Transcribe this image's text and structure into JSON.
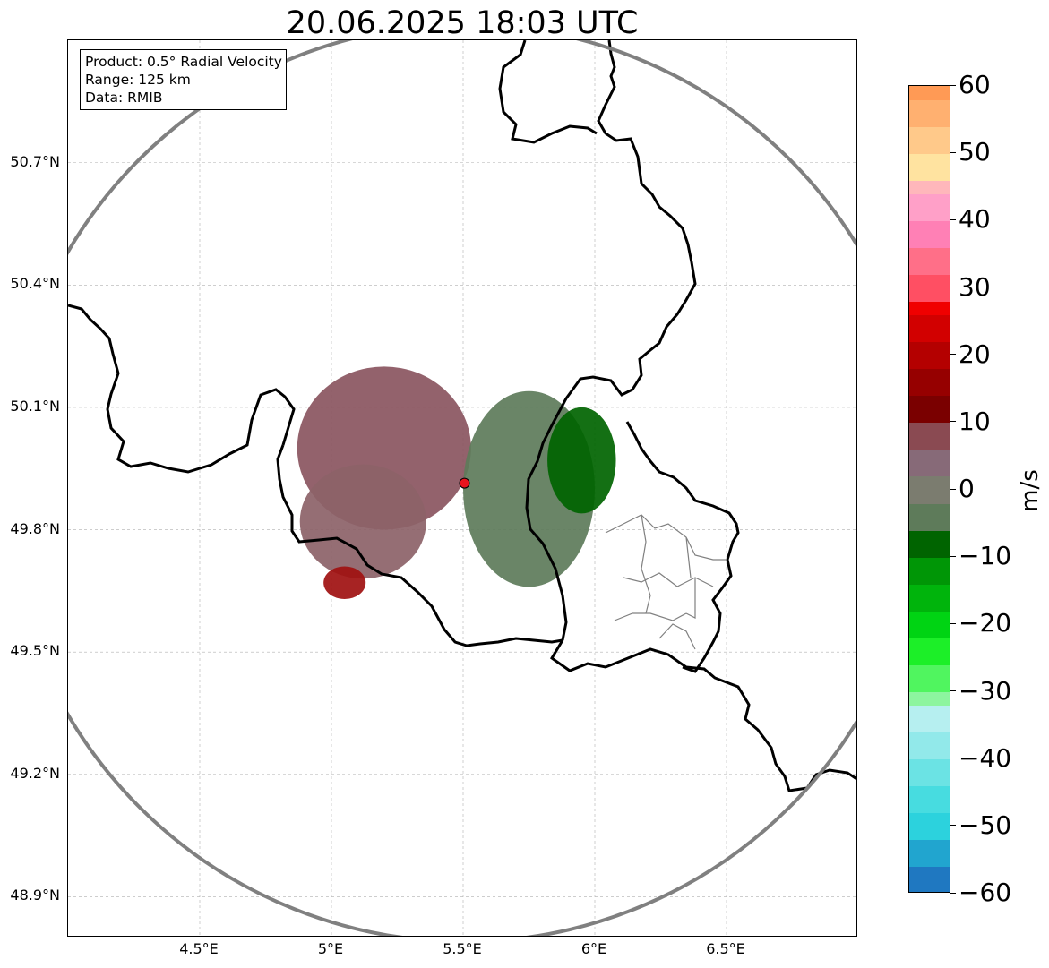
{
  "title": "20.06.2025 18:03 UTC",
  "info_box": {
    "product": "Product: 0.5° Radial Velocity",
    "range": "Range: 125 km",
    "source": "Data: RMIB"
  },
  "axes": {
    "lon_range": [
      4.0,
      7.0
    ],
    "lat_range": [
      48.8,
      51.0
    ],
    "lon_ticks": [
      {
        "value": 4.5,
        "label": "4.5°E"
      },
      {
        "value": 5.0,
        "label": "5°E"
      },
      {
        "value": 5.5,
        "label": "5.5°E"
      },
      {
        "value": 6.0,
        "label": "6°E"
      },
      {
        "value": 6.5,
        "label": "6.5°E"
      }
    ],
    "lat_ticks": [
      {
        "value": 50.7,
        "label": "50.7°N"
      },
      {
        "value": 50.4,
        "label": "50.4°N"
      },
      {
        "value": 50.1,
        "label": "50.1°N"
      },
      {
        "value": 49.8,
        "label": "49.8°N"
      },
      {
        "value": 49.5,
        "label": "49.5°N"
      },
      {
        "value": 49.2,
        "label": "49.2°N"
      },
      {
        "value": 48.9,
        "label": "48.9°N"
      }
    ],
    "grid": true
  },
  "radar": {
    "site": {
      "lon": 5.505,
      "lat": 49.914
    },
    "range_km": 125,
    "site_color": "#e8141e",
    "ring_color": "#808080"
  },
  "echoes": [
    {
      "lon": 5.2,
      "lat": 50.0,
      "rlon": 0.33,
      "rlat": 0.2,
      "color": "#8a5560"
    },
    {
      "lon": 5.12,
      "lat": 49.82,
      "rlon": 0.24,
      "rlat": 0.14,
      "color": "#8c6268"
    },
    {
      "lon": 5.75,
      "lat": 49.9,
      "rlon": 0.25,
      "rlat": 0.24,
      "color": "#5d7b5a"
    },
    {
      "lon": 5.95,
      "lat": 49.97,
      "rlon": 0.13,
      "rlat": 0.13,
      "color": "#006400"
    },
    {
      "lon": 5.05,
      "lat": 49.67,
      "rlon": 0.08,
      "rlat": 0.04,
      "color": "#a01010"
    }
  ],
  "colorbar": {
    "label": "m/s",
    "min": -60,
    "max": 60,
    "ticks": [
      60,
      50,
      40,
      30,
      20,
      10,
      0,
      -10,
      -20,
      -30,
      -40,
      -50,
      -60
    ],
    "tick_labels": [
      "60",
      "50",
      "40",
      "30",
      "20",
      "10",
      "0",
      "−10",
      "−20",
      "−30",
      "−40",
      "−50",
      "−60"
    ],
    "segments": [
      {
        "from": -60,
        "to": -56,
        "color": "#1f78c1"
      },
      {
        "from": -56,
        "to": -52,
        "color": "#21a5cf"
      },
      {
        "from": -52,
        "to": -48,
        "color": "#2cd2dd"
      },
      {
        "from": -48,
        "to": -44,
        "color": "#47dce0"
      },
      {
        "from": -44,
        "to": -40,
        "color": "#6be3e4"
      },
      {
        "from": -40,
        "to": -36,
        "color": "#92e9ea"
      },
      {
        "from": -36,
        "to": -32,
        "color": "#b6eff0"
      },
      {
        "from": -32,
        "to": -30,
        "color": "#8df59f"
      },
      {
        "from": -30,
        "to": -26,
        "color": "#50f55f"
      },
      {
        "from": -26,
        "to": -22,
        "color": "#1cef28"
      },
      {
        "from": -22,
        "to": -18,
        "color": "#00d413"
      },
      {
        "from": -18,
        "to": -14,
        "color": "#00b40c"
      },
      {
        "from": -14,
        "to": -10,
        "color": "#009606"
      },
      {
        "from": -10,
        "to": -6,
        "color": "#006400"
      },
      {
        "from": -6,
        "to": -2,
        "color": "#5e7b5a"
      },
      {
        "from": -2,
        "to": 2,
        "color": "#7b7c6f"
      },
      {
        "from": 2,
        "to": 6,
        "color": "#876a78"
      },
      {
        "from": 6,
        "to": 10,
        "color": "#8a4a52"
      },
      {
        "from": 10,
        "to": 14,
        "color": "#7a0000"
      },
      {
        "from": 14,
        "to": 18,
        "color": "#960000"
      },
      {
        "from": 18,
        "to": 22,
        "color": "#b40000"
      },
      {
        "from": 22,
        "to": 26,
        "color": "#d20000"
      },
      {
        "from": 26,
        "to": 28,
        "color": "#f00000"
      },
      {
        "from": 28,
        "to": 32,
        "color": "#ff4f63"
      },
      {
        "from": 32,
        "to": 36,
        "color": "#ff6f88"
      },
      {
        "from": 36,
        "to": 40,
        "color": "#ff80b5"
      },
      {
        "from": 40,
        "to": 44,
        "color": "#ffa0c8"
      },
      {
        "from": 44,
        "to": 46,
        "color": "#ffb7bb"
      },
      {
        "from": 46,
        "to": 50,
        "color": "#ffe3a0"
      },
      {
        "from": 50,
        "to": 54,
        "color": "#ffc98a"
      },
      {
        "from": 54,
        "to": 58,
        "color": "#ffb070"
      },
      {
        "from": 58,
        "to": 60,
        "color": "#ff9a55"
      }
    ]
  }
}
